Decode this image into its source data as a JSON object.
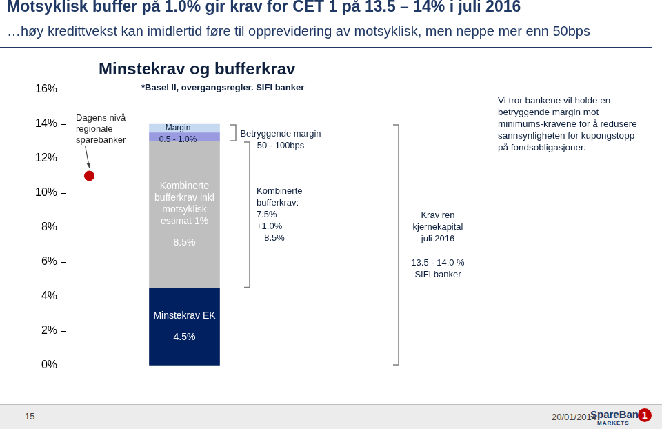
{
  "title": "Motsyklisk buffer på 1.0% gir krav for CET 1 på 13.5 – 14% i juli 2016",
  "subtitle": "…høy kredittvekst kan imidlertid føre til opprevidering av motsyklisk, men neppe mer enn 50bps",
  "chart_data": {
    "type": "bar",
    "title": "Minstekrav og bufferkrav",
    "subtitle": "*Basel II, overgangsregler. SIFI banker",
    "categories": [
      null
    ],
    "stacked": true,
    "data_labels": true,
    "grid": false,
    "series": [
      {
        "name": "Minstekrav EK",
        "color": "#002060",
        "values": [
          4.5
        ],
        "value_labels": [
          "4.5%"
        ]
      },
      {
        "name": "Kombinerte bufferkrav inkl motsyklisk estimat 1%",
        "color": "#bfbfbf",
        "values": [
          8.5
        ],
        "value_labels": [
          "8.5%"
        ]
      },
      {
        "color": "#9a9ae0",
        "values": [
          0.5
        ]
      },
      {
        "color": "#c6d9f1",
        "values": [
          0.5
        ]
      }
    ],
    "markers": [
      {
        "label": "Dagens nivå regionale sparebanker",
        "value": 11,
        "color": "#c00000"
      }
    ],
    "ylim": [
      0,
      16
    ],
    "yticks": [
      {
        "value": 0,
        "label": "0%"
      },
      {
        "value": 2,
        "label": "2%"
      },
      {
        "value": 4,
        "label": "4%"
      },
      {
        "value": 6,
        "label": "6%"
      },
      {
        "value": 8,
        "label": "8%"
      },
      {
        "value": 10,
        "label": "10%"
      },
      {
        "value": 12,
        "label": "12%"
      },
      {
        "value": 14,
        "label": "14%"
      },
      {
        "value": 16,
        "label": "16%"
      }
    ],
    "annotations": [
      {
        "text": [
          "Margin",
          "0.5 - 1.0%"
        ]
      },
      {
        "text": [
          "Betryggende margin",
          "50 - 100bps"
        ]
      },
      {
        "text": [
          "Kombinerte",
          "bufferkrav:",
          "7.5%",
          "+1.0%",
          "= 8.5%"
        ]
      },
      {
        "text": [
          "Krav ren",
          "kjernekapital",
          "juli 2016"
        ]
      },
      {
        "text": [
          "13.5 - 14.0 %",
          "SIFI banker"
        ]
      },
      {
        "text": [
          "Vi tror bankene vil holde en",
          "betryggende margin mot",
          "minimums-kravene for å redusere",
          "sannsynligheten for kupongstopp",
          "på fondsobligasjoner."
        ]
      }
    ]
  },
  "footer": {
    "page": "15",
    "date": "20/01/2014",
    "logo": "SpareBank",
    "logo_sub": "MARKETS",
    "logo_mark": "1"
  }
}
